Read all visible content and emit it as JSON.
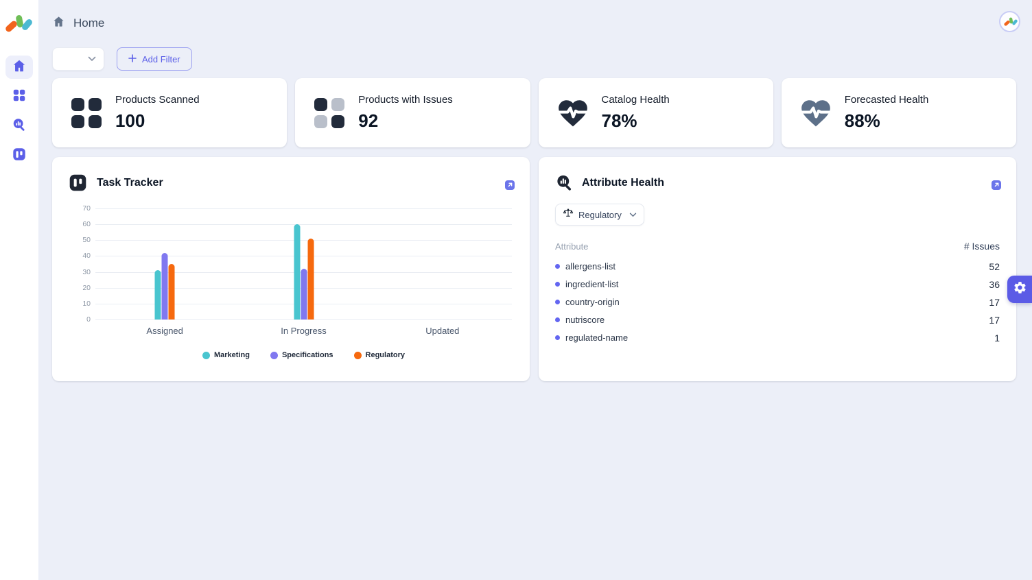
{
  "header": {
    "breadcrumb": "Home"
  },
  "filter_bar": {
    "dropdown_value": "",
    "add_filter_label": "Add Filter"
  },
  "stat_cards": [
    {
      "label": "Products Scanned",
      "value": "100",
      "icon": "grid-dark-icon"
    },
    {
      "label": "Products with Issues",
      "value": "92",
      "icon": "grid-checker-icon"
    },
    {
      "label": "Catalog Health",
      "value": "78%",
      "icon": "heart-pulse-navy-icon"
    },
    {
      "label": "Forecasted Health",
      "value": "88%",
      "icon": "heart-pulse-slate-icon"
    }
  ],
  "task_tracker": {
    "title": "Task Tracker"
  },
  "chart_data": {
    "type": "bar",
    "title": "Task Tracker",
    "categories": [
      "Assigned",
      "In Progress",
      "Updated"
    ],
    "series": [
      {
        "name": "Marketing",
        "color": "#49C5CF",
        "values": [
          31,
          60,
          0
        ]
      },
      {
        "name": "Specifications",
        "color": "#8078F0",
        "values": [
          42,
          32,
          0
        ]
      },
      {
        "name": "Regulatory",
        "color": "#F6690E",
        "values": [
          35,
          51,
          0
        ]
      }
    ],
    "ylim": [
      0,
      70
    ],
    "yticks": [
      0,
      10,
      20,
      30,
      40,
      50,
      60,
      70
    ],
    "grid": true,
    "legend_position": "bottom"
  },
  "attribute_health": {
    "title": "Attribute Health",
    "filter_value": "Regulatory",
    "table": {
      "col_attribute": "Attribute",
      "col_issues": "# Issues",
      "rows": [
        {
          "name": "allergens-list",
          "issues": "52"
        },
        {
          "name": "ingredient-list",
          "issues": "36"
        },
        {
          "name": "country-origin",
          "issues": "17"
        },
        {
          "name": "nutriscore",
          "issues": "17"
        },
        {
          "name": "regulated-name",
          "issues": "1"
        }
      ]
    }
  },
  "colors": {
    "accent_indigo": "#5B5FE8",
    "navy": "#222B3B",
    "slate_heart": "#5D7089",
    "muted_square": "#B9BFCA",
    "background": "#ECEFF8"
  }
}
